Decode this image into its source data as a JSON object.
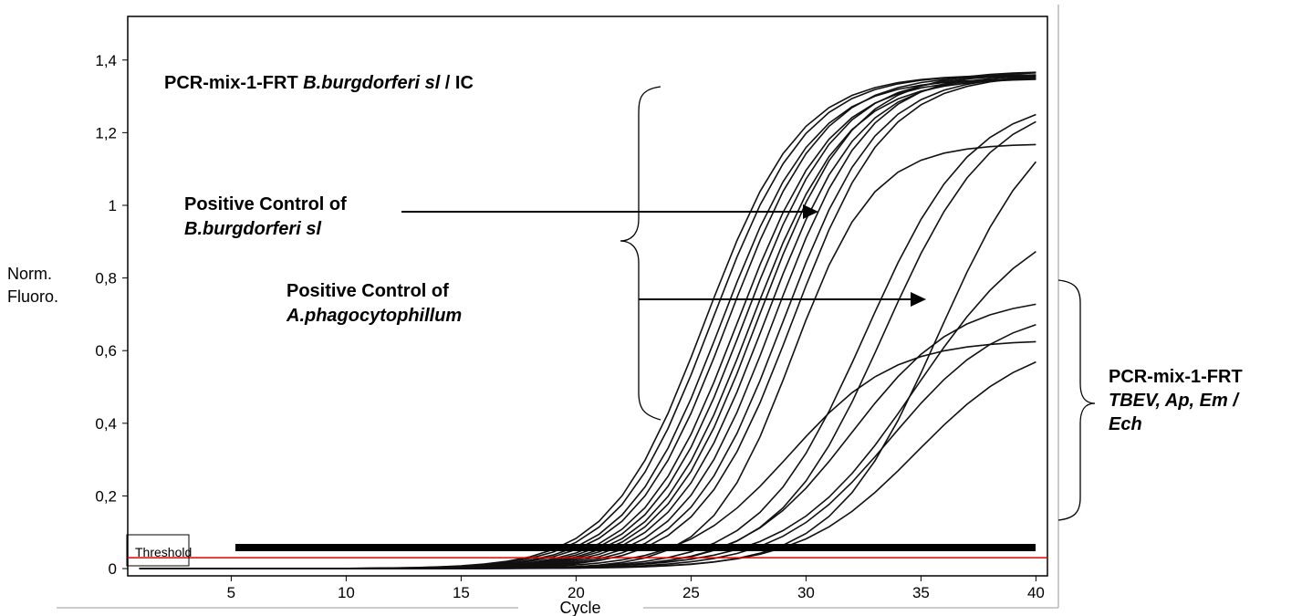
{
  "chart_data": {
    "type": "line",
    "xlabel": "Cycle",
    "ylabel_lines": [
      "Norm.",
      "Fluoro."
    ],
    "xlim": [
      0.5,
      40.5
    ],
    "ylim": [
      -0.02,
      1.52
    ],
    "x_ticks": [
      5,
      10,
      15,
      20,
      25,
      30,
      35,
      40
    ],
    "y_ticks": [
      0,
      0.2,
      0.4,
      0.6,
      0.8,
      1,
      1.2,
      1.4
    ],
    "y_tick_labels": [
      "0",
      "0,2",
      "0,4",
      "0,6",
      "0,8",
      "1",
      "1,2",
      "1,4"
    ],
    "grid": false,
    "threshold": {
      "label": "Threshold",
      "value": 0.03,
      "color": "#e00000"
    },
    "line_color": "#111111",
    "curve_model": "sigmoid",
    "series": [
      {
        "group": "B.burgdorferi sl / IC",
        "plateau": 1.36,
        "midpoint": 25.6,
        "slope": 2.05
      },
      {
        "group": "B.burgdorferi sl / IC",
        "plateau": 1.36,
        "midpoint": 25.9,
        "slope": 2.05
      },
      {
        "group": "B.burgdorferi sl / IC",
        "plateau": 1.35,
        "midpoint": 26.3,
        "slope": 2.05
      },
      {
        "group": "B.burgdorferi sl / IC",
        "plateau": 1.36,
        "midpoint": 26.6,
        "slope": 2.05
      },
      {
        "group": "B.burgdorferi sl / IC",
        "plateau": 1.35,
        "midpoint": 27.0,
        "slope": 2.05
      },
      {
        "group": "B.burgdorferi sl / IC",
        "plateau": 1.36,
        "midpoint": 27.3,
        "slope": 2.05
      },
      {
        "group": "B.burgdorferi sl / IC",
        "plateau": 1.35,
        "midpoint": 27.6,
        "slope": 2.05
      },
      {
        "group": "B.burgdorferi sl / IC",
        "plateau": 1.37,
        "midpoint": 27.9,
        "slope": 2.05
      },
      {
        "group": "B.burgdorferi sl / IC",
        "plateau": 1.36,
        "midpoint": 28.2,
        "slope": 2.05
      },
      {
        "group": "B.burgdorferi sl / IC",
        "plateau": 1.37,
        "midpoint": 28.6,
        "slope": 2.05
      },
      {
        "group": "B.burgdorferi sl / IC",
        "plateau": 1.36,
        "midpoint": 29.0,
        "slope": 2.05
      },
      {
        "group": "B.burgdorferi sl / IC",
        "plateau": 1.36,
        "midpoint": 29.4,
        "slope": 2.05
      },
      {
        "group": "B.burgdorferi sl / IC",
        "plateau": 1.17,
        "midpoint": 29.4,
        "slope": 1.75
      },
      {
        "group": "B.burgdorferi sl / IC",
        "plateau": 1.3,
        "midpoint": 32.6,
        "slope": 2.3
      },
      {
        "group": "B.burgdorferi sl / IC",
        "plateau": 1.3,
        "midpoint": 33.4,
        "slope": 2.3
      },
      {
        "group": "B.burgdorferi sl / IC",
        "plateau": 1.3,
        "midpoint": 35.8,
        "slope": 2.3
      },
      {
        "group": "TBEV, Ap, Em / Ech",
        "plateau": 1.0,
        "midpoint": 34.8,
        "slope": 2.7
      },
      {
        "group": "TBEV, Ap, Em / Ech",
        "plateau": 0.75,
        "midpoint": 32.0,
        "slope": 2.3
      },
      {
        "group": "TBEV, Ap, Em / Ech",
        "plateau": 0.72,
        "midpoint": 33.7,
        "slope": 2.4
      },
      {
        "group": "TBEV, Ap, Em / Ech",
        "plateau": 0.63,
        "midpoint": 29.3,
        "slope": 2.25
      },
      {
        "group": "TBEV, Ap, Em / Ech",
        "plateau": 0.64,
        "midpoint": 34.8,
        "slope": 2.5
      }
    ],
    "annotations": {
      "title_main": "PCR-mix-1-FRT ",
      "title_italic": "B.burgdorferi sl",
      "title_tail": " / IC",
      "pc_bb_line1": "Positive Control of",
      "pc_bb_line2": "B.burgdorferi sl",
      "pc_ap_line1": "Positive Control of",
      "pc_ap_line2": "A.phagocytophillum",
      "right_group_line1": "PCR-mix-1-FRT",
      "right_group_line2": "TBEV, Ap, Em /",
      "right_group_line3": "Ech"
    }
  }
}
